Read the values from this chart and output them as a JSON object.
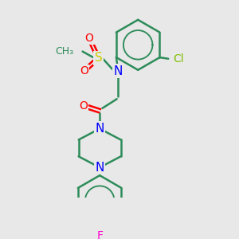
{
  "bg_color": "#e8e8e8",
  "bond_color": "#2d8c5a",
  "atom_colors": {
    "N": "#0000ff",
    "O": "#ff0000",
    "S": "#cccc00",
    "Cl": "#7fbf00",
    "F": "#ff00cc"
  },
  "line_width": 1.8,
  "font_size": 10
}
